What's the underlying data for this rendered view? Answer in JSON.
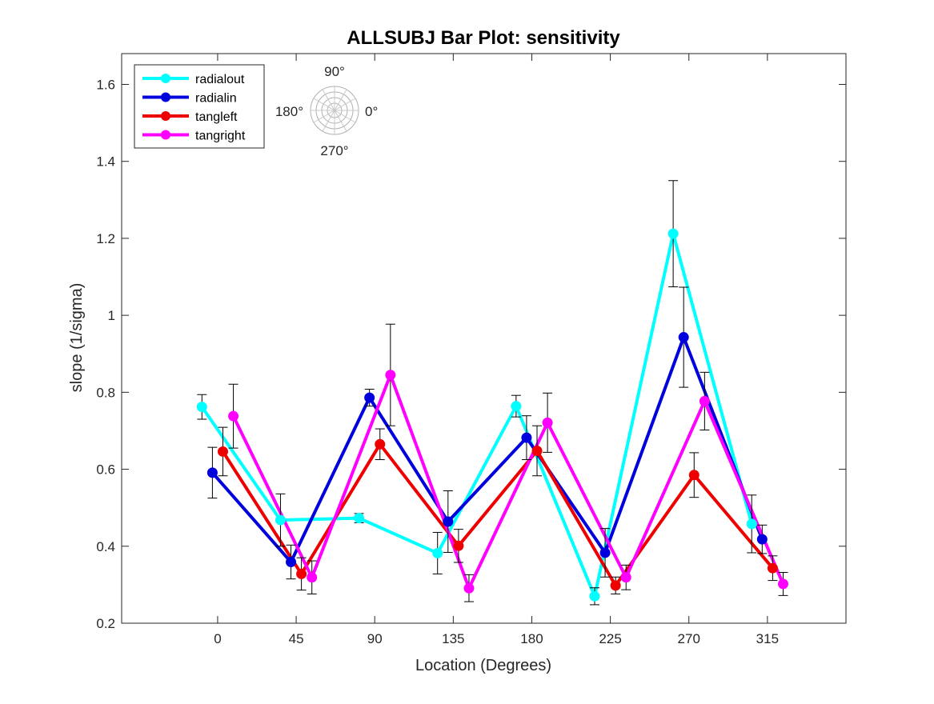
{
  "chart_data": {
    "type": "line",
    "title": "ALLSUBJ Bar Plot: sensitivity",
    "xlabel": "Location (Degrees)",
    "ylabel": "slope (1/sigma)",
    "xlim": [
      -55,
      360
    ],
    "ylim": [
      0.2,
      1.68
    ],
    "xticks": [
      0,
      45,
      90,
      135,
      180,
      225,
      270,
      315
    ],
    "xtick_labels": [
      "0",
      "45",
      "90",
      "135",
      "180",
      "225",
      "270",
      "315"
    ],
    "yticks": [
      0.2,
      0.4,
      0.6,
      0.8,
      1.0,
      1.2,
      1.4,
      1.6
    ],
    "ytick_labels": [
      "0.2",
      "0.4",
      "0.6",
      "0.8",
      "1",
      "1.2",
      "1.4",
      "1.6"
    ],
    "grid": false,
    "legend_position": "top-left",
    "series": [
      {
        "name": "radialout",
        "color": "#00ffff",
        "x": [
          -9,
          36,
          81,
          126,
          171,
          216,
          261,
          306
        ],
        "values": [
          0.762,
          0.468,
          0.473,
          0.382,
          0.764,
          0.27,
          1.212,
          0.458
        ],
        "errors": [
          0.032,
          0.068,
          0.012,
          0.054,
          0.028,
          0.022,
          0.138,
          0.075
        ]
      },
      {
        "name": "radialin",
        "color": "#0000dd",
        "x": [
          -3,
          42,
          87,
          132,
          177,
          222,
          267,
          312
        ],
        "values": [
          0.591,
          0.359,
          0.786,
          0.464,
          0.682,
          0.383,
          0.943,
          0.418
        ],
        "errors": [
          0.066,
          0.044,
          0.022,
          0.08,
          0.057,
          0.063,
          0.13,
          0.037
        ]
      },
      {
        "name": "tangleft",
        "color": "#ee0000",
        "x": [
          3,
          48,
          93,
          138,
          183,
          228,
          273,
          318
        ],
        "values": [
          0.646,
          0.328,
          0.665,
          0.401,
          0.648,
          0.298,
          0.585,
          0.343
        ],
        "errors": [
          0.063,
          0.042,
          0.04,
          0.043,
          0.065,
          0.022,
          0.058,
          0.032
        ]
      },
      {
        "name": "tangright",
        "color": "#ff00ff",
        "x": [
          9,
          54,
          99,
          144,
          189,
          234,
          279,
          324
        ],
        "values": [
          0.738,
          0.319,
          0.845,
          0.291,
          0.721,
          0.319,
          0.777,
          0.302
        ],
        "errors": [
          0.083,
          0.043,
          0.132,
          0.035,
          0.077,
          0.032,
          0.075,
          0.03
        ]
      }
    ],
    "annotations": {
      "polar_labels": {
        "top": "90°",
        "left": "180°",
        "right": "0°",
        "bottom": "270°"
      }
    }
  }
}
